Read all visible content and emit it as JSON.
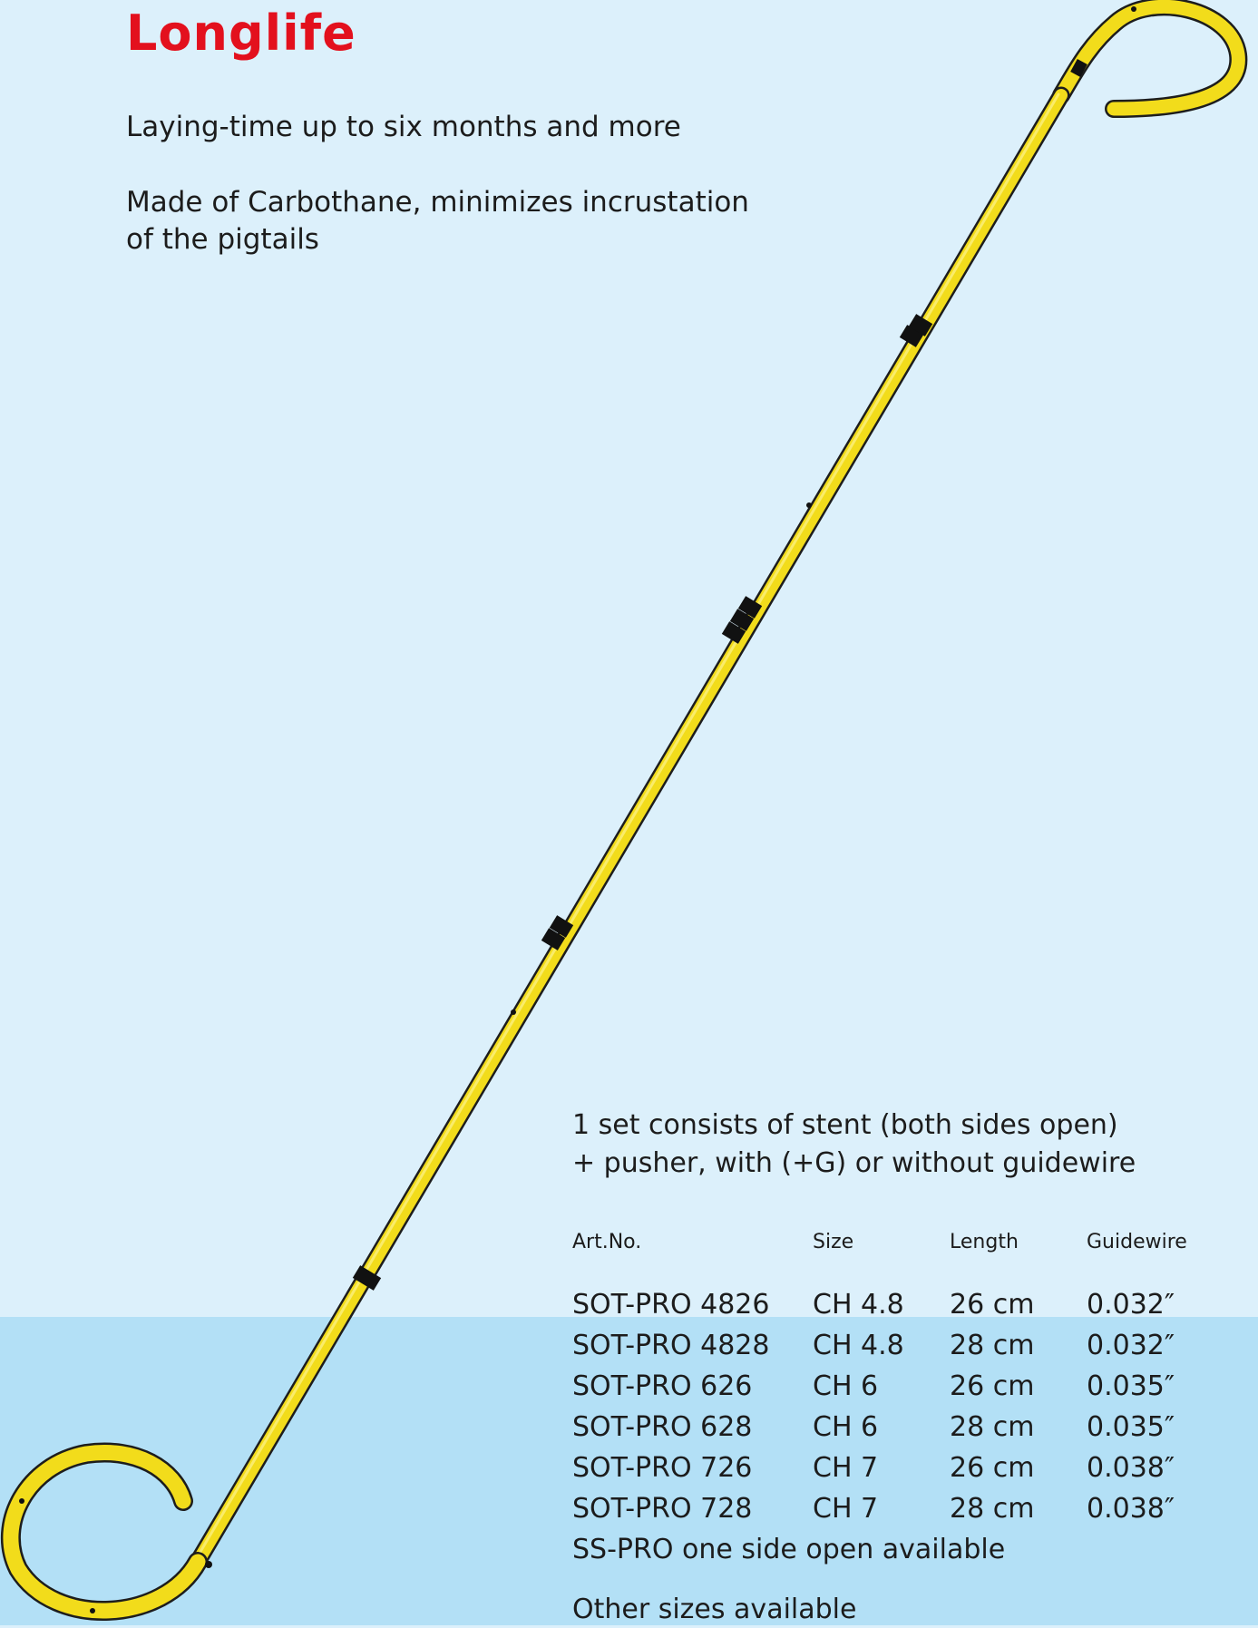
{
  "header": {
    "title": "Longlife"
  },
  "features": [
    "Laying-time up to six months and more",
    "Made of Carbothane, minimizes incrustation",
    "of the pigtails"
  ],
  "spec": {
    "intro_line1": "1 set consists of stent (both sides open)",
    "intro_line2": "+ pusher, with (+G) or without guidewire",
    "columns": [
      "Art.No.",
      "Size",
      "Length",
      "Guidewire"
    ],
    "rows": [
      [
        "SOT-PRO 4826",
        "CH 4.8",
        "26 cm",
        "0.032″"
      ],
      [
        "SOT-PRO 4828",
        "CH 4.8",
        "28 cm",
        "0.032″"
      ],
      [
        "SOT-PRO 626",
        "CH 6",
        "26 cm",
        "0.035″"
      ],
      [
        "SOT-PRO 628",
        "CH 6",
        "28 cm",
        "0.035″"
      ],
      [
        "SOT-PRO 726",
        "CH 7",
        "26 cm",
        "0.038″"
      ],
      [
        "SOT-PRO 728",
        "CH 7",
        "28 cm",
        "0.038″"
      ]
    ],
    "note1": "SS-PRO one side open available",
    "note2": "Other sizes available"
  },
  "colors": {
    "background": "#dcf0fb",
    "lower_band": "#b3e0f6",
    "title": "#e3101d",
    "stent": "#f2dc1b"
  }
}
